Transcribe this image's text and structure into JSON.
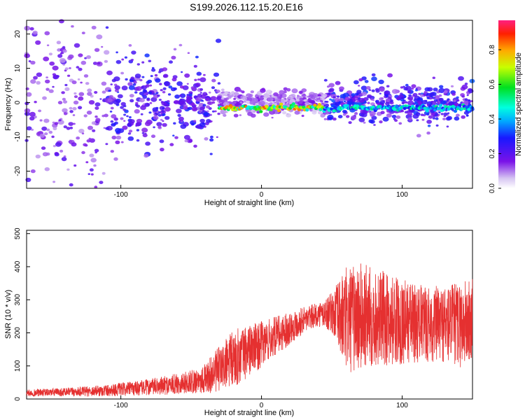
{
  "title": "S199.2026.112.15.20.E16",
  "colors": {
    "signal": "#e53030",
    "axis": "#000000",
    "background": "#ffffff"
  },
  "chart_data": [
    {
      "type": "heatmap",
      "name": "spectrogram",
      "xlabel": "Height of straight line (km)",
      "ylabel": "Frequency (Hz)",
      "xlim": [
        -167,
        150
      ],
      "ylim": [
        -25,
        24
      ],
      "xticks": [
        -100,
        0,
        100
      ],
      "xtick_labels": [
        "-100",
        "0",
        "100"
      ],
      "yticks": [
        -20,
        -10,
        0,
        10,
        20
      ],
      "ytick_labels": [
        "-20",
        "-10",
        "0",
        "10",
        "20"
      ],
      "colorbar": {
        "label": "Normalized spectral amplitude",
        "range": [
          0,
          0.97
        ],
        "ticks": [
          0,
          0.2,
          0.4,
          0.6,
          0.8
        ],
        "tick_labels": [
          "0.0",
          "0.2",
          "0.4",
          "0.6",
          "0.8"
        ]
      },
      "ridge": [
        {
          "x_start": -30,
          "x_end": 45,
          "freq": -1.5,
          "amplitude": 0.9
        },
        {
          "x_start": 45,
          "x_end": 150,
          "freq": -1.5,
          "amplitude": 0.55
        }
      ]
    },
    {
      "type": "line",
      "name": "snr",
      "xlabel": "Height of straight line (km)",
      "ylabel": "SNR (10 * v/v)",
      "xlim": [
        -167,
        150
      ],
      "ylim": [
        0,
        510
      ],
      "xticks": [
        -100,
        0,
        100
      ],
      "xtick_labels": [
        "-100",
        "0",
        "100"
      ],
      "yticks": [
        0,
        100,
        200,
        300,
        400,
        500
      ],
      "ytick_labels": [
        "0",
        "100",
        "200",
        "300",
        "400",
        "500"
      ],
      "series": [
        {
          "name": "SNR",
          "color": "#e53030",
          "envelope_x": [
            -167,
            -150,
            -130,
            -110,
            -90,
            -70,
            -50,
            -40,
            -30,
            -20,
            -10,
            0,
            10,
            20,
            30,
            40,
            50,
            55,
            60,
            70,
            80,
            90,
            100,
            110,
            120,
            130,
            140,
            150
          ],
          "envelope_mean": [
            18,
            20,
            22,
            26,
            32,
            40,
            52,
            62,
            90,
            120,
            145,
            165,
            190,
            215,
            240,
            255,
            262,
            250,
            240,
            245,
            250,
            240,
            235,
            230,
            225,
            228,
            225,
            230
          ],
          "envelope_amp": [
            10,
            12,
            14,
            18,
            22,
            28,
            35,
            45,
            70,
            90,
            80,
            70,
            60,
            50,
            40,
            35,
            60,
            110,
            160,
            170,
            150,
            140,
            130,
            120,
            115,
            120,
            130,
            140
          ]
        }
      ]
    }
  ]
}
